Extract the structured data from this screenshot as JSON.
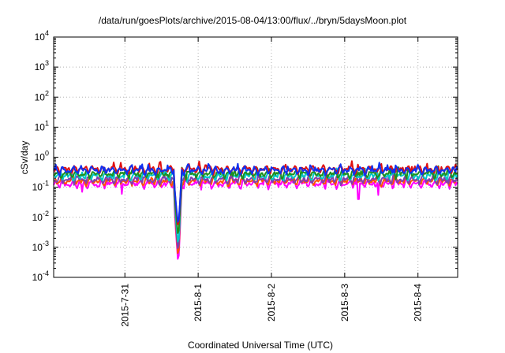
{
  "chart_data": {
    "type": "line",
    "title": "/data/run/goesPlots/archive/2015-08-04/13:00/flux/../bryn/5daysMoon.plot",
    "xlabel": "Coordinated Universal Time (UTC)",
    "ylabel": "cSv/day",
    "y_scale": "log",
    "ylim": [
      0.0001,
      10000
    ],
    "y_ticks": [
      {
        "base": "10",
        "exp": "-4"
      },
      {
        "base": "10",
        "exp": "-3"
      },
      {
        "base": "10",
        "exp": "-2"
      },
      {
        "base": "10",
        "exp": "-1"
      },
      {
        "base": "10",
        "exp": "0"
      },
      {
        "base": "10",
        "exp": "1"
      },
      {
        "base": "10",
        "exp": "2"
      },
      {
        "base": "10",
        "exp": "3"
      },
      {
        "base": "10",
        "exp": "4"
      }
    ],
    "xlim": [
      "2015-07-30 00:40",
      "2015-08-04 13:00"
    ],
    "x_ticks": [
      "2015-7-31",
      "2015-8-1",
      "2015-8-2",
      "2015-8-3",
      "2015-8-4"
    ],
    "grid": true,
    "legend": "none",
    "dip": {
      "start": "2015-07-31 16:00",
      "min": "2015-07-31 17:30",
      "end": "2015-07-31 18:30"
    },
    "series": [
      {
        "color": "#ff00ff",
        "base": 0.13,
        "dip_min": 0.00025,
        "spike_dips": [
          [
            "2015-07-30 10:00",
            0.07
          ],
          [
            "2015-07-30 23:00",
            0.06
          ],
          [
            "2015-08-03 04:30",
            0.04
          ],
          [
            "2015-08-03 11:00",
            0.055
          ]
        ]
      },
      {
        "color": "#ff5000",
        "base": 0.16,
        "dip_min": 0.0004,
        "spike_dips": []
      },
      {
        "color": "#7f3faf",
        "base": 0.18,
        "dip_min": 0.0006,
        "spike_dips": []
      },
      {
        "color": "#00c8c8",
        "base": 0.24,
        "dip_min": 0.001,
        "spike_dips": []
      },
      {
        "color": "#1f8f1f",
        "base": 0.28,
        "dip_min": 0.002,
        "spike_dips": []
      },
      {
        "color": "#e01010",
        "base": 0.4,
        "dip_min": 0.004,
        "spike_dips": []
      },
      {
        "color": "#1030f0",
        "base": 0.37,
        "dip_min": 0.005,
        "spike_dips": []
      }
    ]
  }
}
